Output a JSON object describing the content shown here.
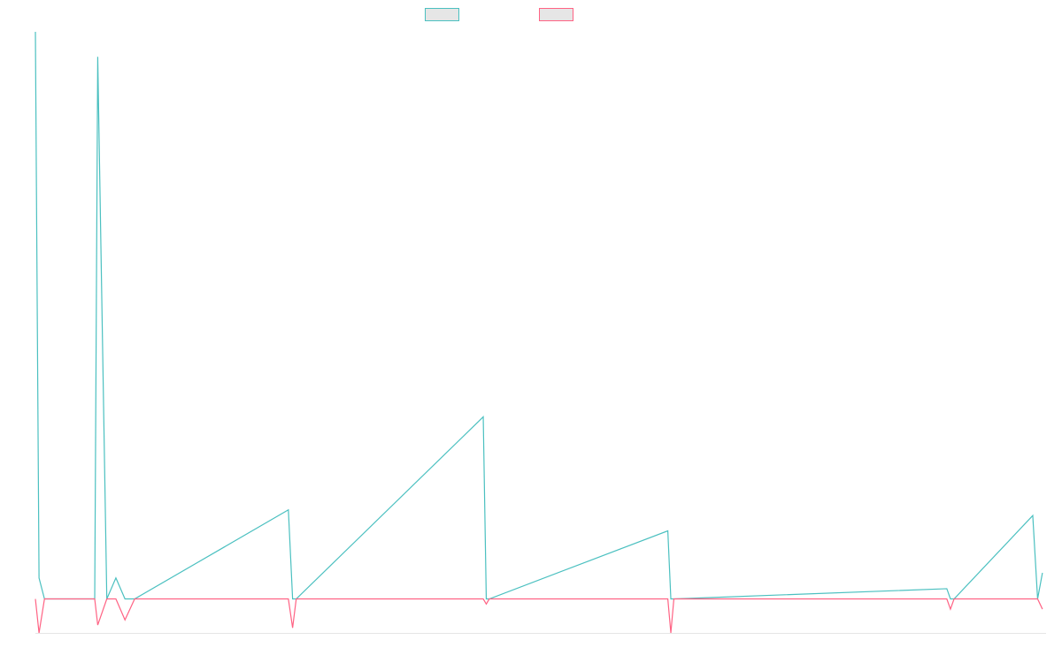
{
  "chart_data": {
    "type": "line",
    "title": "",
    "xlabel": "",
    "ylabel": "",
    "grid": false,
    "legend_position": "top",
    "x": [
      0,
      0.6,
      1.5,
      9.8,
      10.3,
      11.8,
      13.3,
      14.8,
      16.4,
      41.8,
      42.5,
      43.1,
      74.0,
      74.5,
      75.0,
      104.5,
      105.0,
      105.5,
      150.6,
      151.2,
      151.8,
      164.8,
      165.6,
      166.4
    ],
    "xlim": [
      0,
      167
    ],
    "ylim": [
      -6,
      100
    ],
    "series": [
      {
        "name": "",
        "color": "#4bc0c0",
        "values": [
          100,
          3.7,
          0,
          0,
          95.6,
          0,
          3.7,
          0,
          0,
          15.7,
          0,
          0,
          32.1,
          0,
          0,
          12,
          0,
          0,
          1.8,
          0,
          0,
          14.7,
          0,
          4.6
        ]
      },
      {
        "name": "",
        "color": "#ff6384",
        "values": [
          0,
          -6,
          0,
          0,
          -4.6,
          0,
          0,
          -3.7,
          0,
          0,
          -5.1,
          0,
          0,
          -0.9,
          0,
          0,
          -6,
          0,
          0,
          -1.8,
          0,
          0,
          0,
          -1.8
        ]
      }
    ]
  }
}
